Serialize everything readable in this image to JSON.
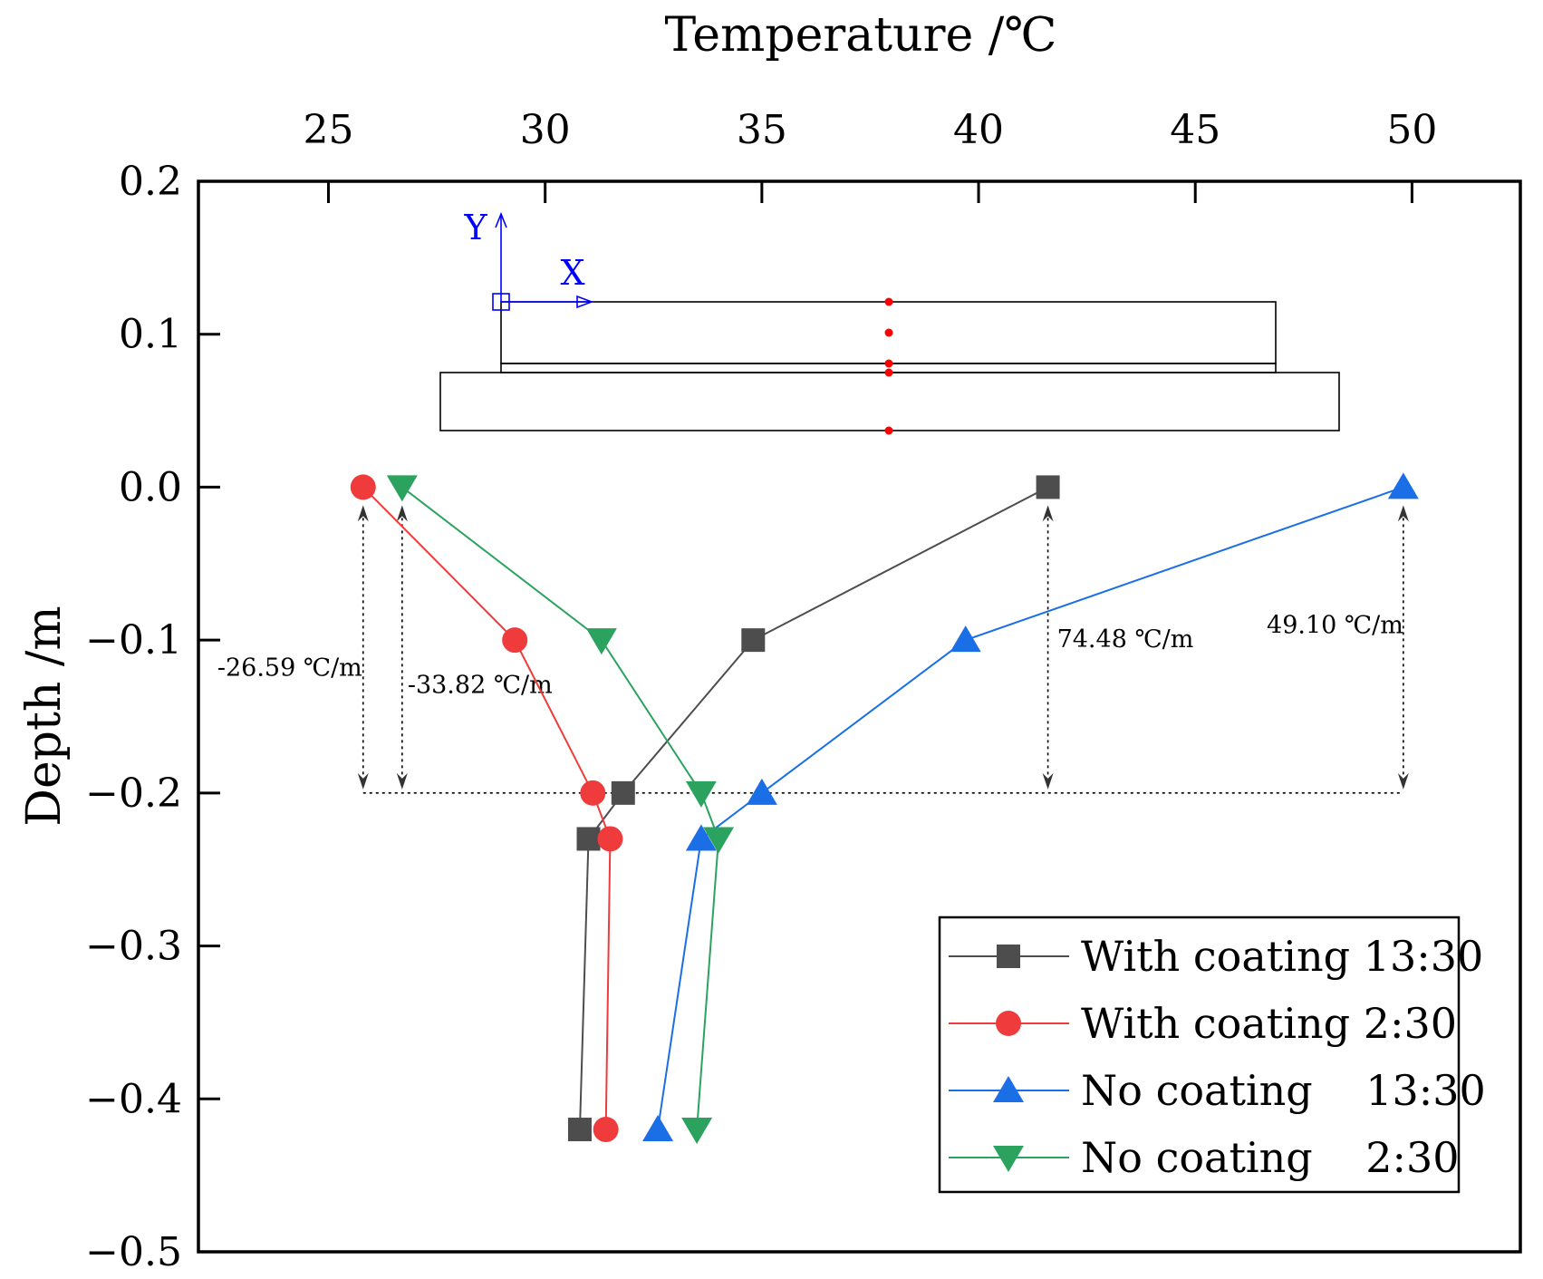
{
  "chart_data": {
    "type": "line",
    "xlabel": "Temperature /℃",
    "ylabel": "Depth /m",
    "xlim": [
      22,
      52.5
    ],
    "ylim": [
      -0.5,
      0.2
    ],
    "x_axis_position": "top",
    "x_ticks": [
      25,
      30,
      35,
      40,
      45,
      50
    ],
    "y_ticks": [
      0.2,
      0.1,
      0.0,
      -0.1,
      -0.2,
      -0.3,
      -0.4,
      -0.5
    ],
    "x_tick_labels": [
      "25",
      "30",
      "35",
      "40",
      "45",
      "50"
    ],
    "y_tick_labels": [
      "0.2",
      "0.1",
      "0.0",
      "−0.1",
      "−0.2",
      "−0.3",
      "−0.4",
      "−0.5"
    ],
    "legend_position": "bottom-right",
    "grid": false,
    "series": [
      {
        "name": "With coating 13:30",
        "color": "#4d4d4d",
        "marker": "square",
        "points": [
          [
            41.6,
            0.0
          ],
          [
            34.8,
            -0.1
          ],
          [
            31.8,
            -0.2
          ],
          [
            31.0,
            -0.23
          ],
          [
            30.8,
            -0.42
          ]
        ]
      },
      {
        "name": "With coating 2:30",
        "color": "#ef3b3b",
        "marker": "circle",
        "points": [
          [
            25.8,
            0.0
          ],
          [
            29.3,
            -0.1
          ],
          [
            31.1,
            -0.2
          ],
          [
            31.5,
            -0.23
          ],
          [
            31.4,
            -0.42
          ]
        ]
      },
      {
        "name": "No coating    13:30",
        "color": "#1a6ee6",
        "marker": "triangle-up",
        "points": [
          [
            49.8,
            0.0
          ],
          [
            39.7,
            -0.1
          ],
          [
            35.0,
            -0.2
          ],
          [
            33.6,
            -0.23
          ],
          [
            32.6,
            -0.42
          ]
        ]
      },
      {
        "name": "No coating    2:30",
        "color": "#2ca25f",
        "marker": "triangle-down",
        "points": [
          [
            26.7,
            0.0
          ],
          [
            31.3,
            -0.1
          ],
          [
            33.6,
            -0.2
          ],
          [
            34.0,
            -0.23
          ],
          [
            33.5,
            -0.42
          ]
        ]
      }
    ],
    "gradient_annotations": [
      {
        "text": "-26.59 ℃/m",
        "x": 25.8
      },
      {
        "text": "-33.82 ℃/m",
        "x": 26.7
      },
      {
        "text": "74.48 ℃/m",
        "x": 41.6
      },
      {
        "text": "49.10 ℃/m",
        "x": 49.8
      }
    ],
    "inset": {
      "y_label": "Y",
      "x_label": "X",
      "sensor_color": "#ff0000"
    }
  }
}
